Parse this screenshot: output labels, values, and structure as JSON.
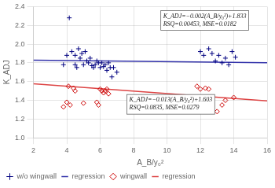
{
  "chart_data": {
    "type": "scatter",
    "xlabel": "A_B/y₀²",
    "ylabel": "K_ADJ",
    "xlim": [
      2,
      16
    ],
    "ylim": [
      1.0,
      2.4
    ],
    "xticks": [
      2,
      4,
      6,
      8,
      10,
      12,
      14,
      16
    ],
    "yticks": [
      {
        "value": 1.0,
        "label": "1.0"
      },
      1.2,
      1.4,
      1.6,
      1.8,
      {
        "value": 2.0,
        "label": "2.0"
      },
      2.2,
      2.4
    ],
    "grid": true,
    "legend": "lower left",
    "series": [
      {
        "name": "w/o wingwall",
        "type": "scatter",
        "marker": "plus",
        "color": "#000080",
        "x": [
          3.8,
          4.0,
          4.15,
          4.3,
          4.5,
          4.5,
          4.6,
          4.7,
          4.8,
          4.9,
          5.0,
          5.1,
          5.2,
          5.3,
          5.4,
          5.5,
          5.6,
          5.7,
          5.8,
          5.9,
          6.0,
          6.1,
          6.2,
          6.3,
          6.4,
          6.5,
          6.6,
          6.7,
          6.8,
          7.0,
          12.0,
          12.2,
          12.5,
          12.7,
          12.9,
          13.1,
          13.3,
          13.5,
          13.7,
          13.9,
          14.1
        ],
        "values": [
          1.78,
          1.88,
          2.28,
          1.92,
          1.78,
          1.88,
          1.75,
          1.95,
          1.85,
          1.9,
          1.78,
          1.92,
          1.82,
          1.8,
          1.85,
          1.77,
          1.75,
          1.78,
          1.82,
          1.8,
          1.75,
          1.8,
          1.76,
          1.78,
          1.72,
          1.8,
          1.75,
          1.65,
          1.75,
          1.7,
          1.92,
          1.88,
          1.95,
          1.9,
          1.82,
          1.88,
          1.8,
          1.85,
          1.78,
          1.92,
          1.86
        ]
      },
      {
        "name": "regression",
        "type": "line",
        "line_style": "solid",
        "color": "#3333AA",
        "x": [
          2,
          16
        ],
        "values": [
          1.829,
          1.801
        ]
      },
      {
        "name": "wingwall",
        "type": "scatter",
        "marker": "diamond",
        "color": "#CC0000",
        "x": [
          3.8,
          4.0,
          4.1,
          4.2,
          4.4,
          4.5,
          5.0,
          5.8,
          5.9,
          6.0,
          6.1,
          6.2,
          6.3,
          6.4,
          6.5,
          11.8,
          12.0,
          12.3,
          12.5,
          13.0,
          13.3,
          13.5,
          14.0
        ],
        "values": [
          1.33,
          1.38,
          1.55,
          1.35,
          1.53,
          1.5,
          1.37,
          1.38,
          1.35,
          1.52,
          1.5,
          1.48,
          1.5,
          1.52,
          1.47,
          1.55,
          1.52,
          1.53,
          1.52,
          1.28,
          1.35,
          1.4,
          1.43
        ]
      },
      {
        "name": "regression",
        "type": "line",
        "line_style": "solid",
        "color": "#DD4444",
        "x": [
          2,
          16
        ],
        "values": [
          1.577,
          1.395
        ]
      }
    ],
    "annotations": [
      "K_ADJ=−0.002(A_B/y₀²)+1.833\nRSQ=0.00453, MSE=0.0182",
      "K_ADJ=−0.013(A_B/y₀²)+1.603\nRSQ=0.0835, MSE=0.0279"
    ]
  }
}
